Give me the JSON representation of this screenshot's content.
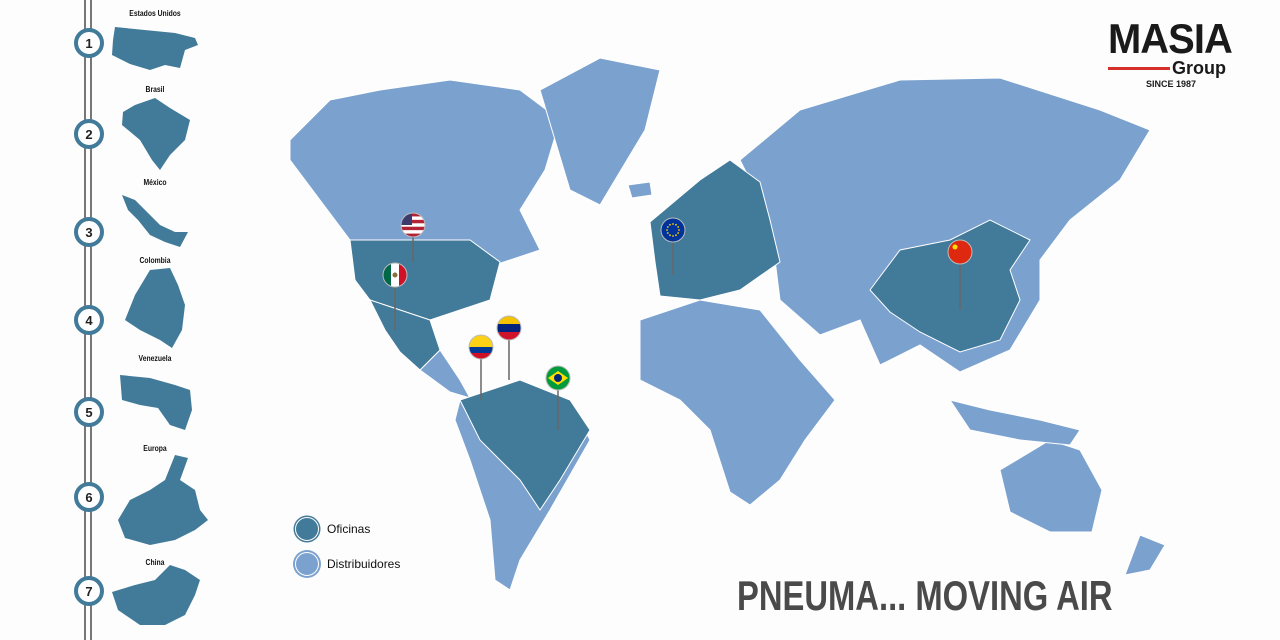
{
  "logo": {
    "brand": "MASIA",
    "sub": "Group",
    "since": "SINCE 1987"
  },
  "timeline": [
    {
      "n": "1",
      "label": "Estados Unidos"
    },
    {
      "n": "2",
      "label": "Brasil"
    },
    {
      "n": "3",
      "label": "México"
    },
    {
      "n": "4",
      "label": "Colombia"
    },
    {
      "n": "5",
      "label": "Venezuela"
    },
    {
      "n": "6",
      "label": "Europa"
    },
    {
      "n": "7",
      "label": "China"
    }
  ],
  "legend": {
    "offices": "Oficinas",
    "distributors": "Distribuidores"
  },
  "colors": {
    "offices": "#427a99",
    "distributors": "#7ba2cf",
    "logo_red": "#d6302a"
  },
  "pins": [
    "usa-flag-icon",
    "mexico-flag-icon",
    "venezuela-flag-icon",
    "colombia-flag-icon",
    "brazil-flag-icon",
    "eu-flag-icon",
    "china-flag-icon"
  ],
  "tagline": "PNEUMA... MOVING AIR"
}
